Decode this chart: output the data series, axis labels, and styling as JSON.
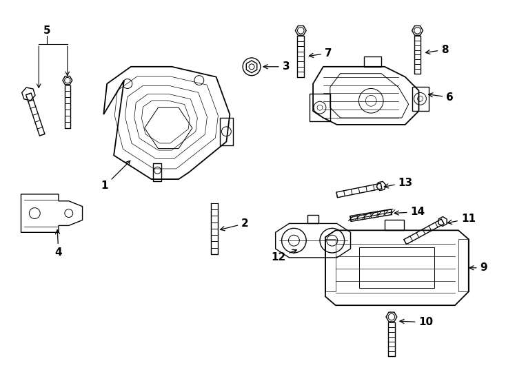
{
  "background_color": "#ffffff",
  "line_color": "#000000",
  "fig_width": 7.34,
  "fig_height": 5.4,
  "dpi": 100
}
